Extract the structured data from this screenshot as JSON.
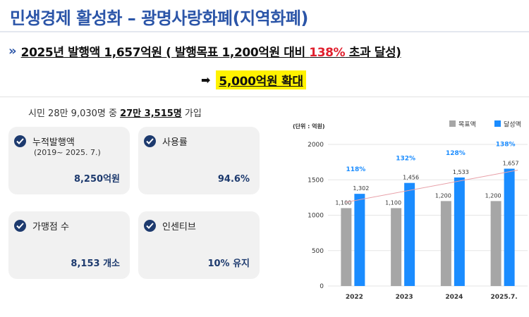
{
  "header": {
    "title": "민생경제 활성화 – 광명사랑화폐(지역화폐)"
  },
  "headline": {
    "prefix": "2025년 발행액 1,657억원 ( 발행목표 1,200억원 대비 ",
    "highlight": "138%",
    "suffix": " 초과 달성)"
  },
  "target": {
    "text": "5,000억원 확대"
  },
  "citizens": {
    "prefix": "시민 28만 9,030명 중 ",
    "bold": "27만 3,515명",
    "suffix": " 가입"
  },
  "cards": [
    {
      "label": "누적발행액",
      "sub": "(2019~ 2025. 7.)",
      "value": "8,250억원"
    },
    {
      "label": "사용률",
      "sub": "",
      "value": "94.6%"
    },
    {
      "label": "가맹점 수",
      "sub": "",
      "value": "8,153 개소"
    },
    {
      "label": "인센티브",
      "sub": "",
      "value": "10% 유지"
    }
  ],
  "colors": {
    "title_blue": "#2b55a8",
    "navy": "#1d3a6e",
    "highlight_red": "#e0202e",
    "highlight_yellow": "#fff200",
    "bar_target": "#a6a6a6",
    "bar_achieved": "#1a8cff",
    "trend_line": "#e8a0a8"
  },
  "chart_data": {
    "type": "bar",
    "unit_label": "(단위 : 억원)",
    "categories": [
      "2022",
      "2023",
      "2024",
      "2025.7."
    ],
    "series": [
      {
        "name": "목표액",
        "values": [
          1100,
          1100,
          1200,
          1200
        ],
        "labels": [
          "1,100",
          "1,100",
          "1,200",
          "1,200"
        ]
      },
      {
        "name": "달성액",
        "values": [
          1302,
          1456,
          1533,
          1657
        ],
        "labels": [
          "1,302",
          "1,456",
          "1,533",
          "1,657"
        ]
      }
    ],
    "rates": [
      "118%",
      "132%",
      "128%",
      "138%"
    ],
    "ylim": [
      0,
      2000
    ],
    "yticks": [
      0,
      500,
      1000,
      1500,
      2000
    ],
    "legend": "top-right",
    "trendline": true,
    "grid": true
  }
}
